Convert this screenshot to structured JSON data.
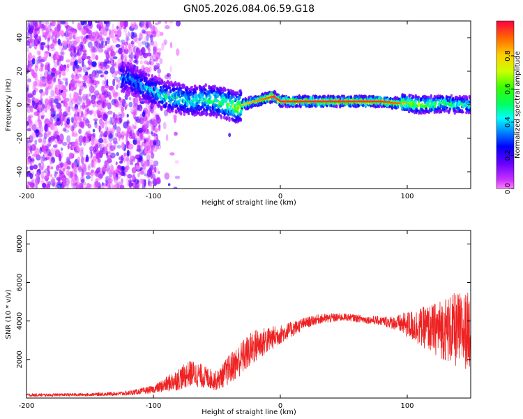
{
  "chart_data": [
    {
      "type": "heatmap",
      "title": "GN05.2026.084.06.59.G18",
      "xlabel": "Height of straight line (km)",
      "ylabel": "Frequency (Hz)",
      "xlim": [
        -200,
        150
      ],
      "ylim": [
        -50,
        50
      ],
      "xticks": [
        -200,
        -100,
        0,
        100
      ],
      "yticks": [
        -40,
        -20,
        0,
        20,
        40
      ],
      "colorbar": {
        "label": "Normalized spectral amplitude",
        "range": [
          0,
          1
        ],
        "ticks": [
          "0.0",
          "0.2",
          "0.4",
          "0.6",
          "0.8"
        ],
        "colormap": "hsv-reversed (magenta-blue-cyan-green-yellow-red)"
      },
      "description_trace": {
        "x": [
          -120,
          -110,
          -100,
          -90,
          -80,
          -70,
          -60,
          -50,
          -40,
          -35,
          -30,
          -20,
          -10,
          -5,
          0,
          20,
          40,
          60,
          80,
          90,
          100,
          110,
          120,
          130,
          140,
          150
        ],
        "freq": [
          16,
          12,
          8,
          5,
          4,
          2,
          3,
          2,
          0,
          -2,
          0,
          2,
          4,
          5,
          2,
          2,
          2,
          2,
          2,
          1,
          1,
          0,
          0,
          1,
          0,
          0
        ],
        "peak_amplitude": [
          0.4,
          0.45,
          0.5,
          0.55,
          0.55,
          0.55,
          0.6,
          0.65,
          0.7,
          0.75,
          0.8,
          0.85,
          0.9,
          0.95,
          0.95,
          0.95,
          0.95,
          0.95,
          0.95,
          0.9,
          0.85,
          0.8,
          0.7,
          0.65,
          0.6,
          0.6
        ]
      }
    },
    {
      "type": "line",
      "title": "",
      "xlabel": "Height of straight line (km)",
      "ylabel": "SNR (10 * v/v)",
      "xlim": [
        -200,
        150
      ],
      "ylim": [
        0,
        8700
      ],
      "xticks": [
        -200,
        -100,
        0,
        100
      ],
      "yticks": [
        2000,
        4000,
        6000,
        8000
      ],
      "color": "#ee2222",
      "envelope": {
        "x": [
          -200,
          -150,
          -120,
          -100,
          -90,
          -80,
          -70,
          -60,
          -50,
          -40,
          -30,
          -20,
          -10,
          0,
          10,
          20,
          30,
          40,
          50,
          60,
          70,
          80,
          90,
          100,
          110,
          120,
          130,
          140,
          150
        ],
        "mean": [
          150,
          180,
          250,
          450,
          700,
          1000,
          1300,
          1100,
          900,
          1500,
          2100,
          2700,
          3000,
          3300,
          3600,
          3900,
          4100,
          4150,
          4200,
          4150,
          4050,
          4000,
          3900,
          3800,
          3700,
          3600,
          3600,
          3500,
          3500
        ],
        "spread": [
          80,
          80,
          120,
          200,
          400,
          600,
          700,
          600,
          500,
          800,
          900,
          900,
          700,
          500,
          400,
          300,
          250,
          250,
          200,
          200,
          200,
          250,
          350,
          700,
          1000,
          1300,
          1700,
          2000,
          2000
        ]
      }
    }
  ]
}
